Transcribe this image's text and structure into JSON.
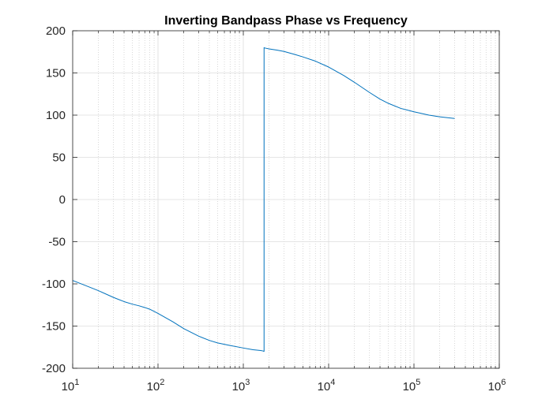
{
  "chart_data": {
    "type": "line",
    "title": "Inverting Bandpass Phase vs Frequency",
    "xlabel": "",
    "ylabel": "",
    "x_scale": "log",
    "xlim": [
      10,
      1000000
    ],
    "ylim": [
      -200,
      200
    ],
    "grid": true,
    "minor_grid_x": true,
    "x_ticks": [
      {
        "base": "10",
        "exp": "1",
        "value": 10
      },
      {
        "base": "10",
        "exp": "2",
        "value": 100
      },
      {
        "base": "10",
        "exp": "3",
        "value": 1000
      },
      {
        "base": "10",
        "exp": "4",
        "value": 10000
      },
      {
        "base": "10",
        "exp": "5",
        "value": 100000
      },
      {
        "base": "10",
        "exp": "6",
        "value": 1000000
      }
    ],
    "y_ticks": [
      "200",
      "150",
      "100",
      "50",
      "0",
      "-50",
      "-100",
      "-150",
      "-200"
    ],
    "series": [
      {
        "color": "#0072BD",
        "x": [
          10,
          15,
          20,
          30,
          40,
          50,
          60,
          70,
          80,
          100,
          150,
          200,
          300,
          400,
          500,
          700,
          1000,
          1300,
          1600,
          1700,
          1750,
          1750.5,
          1800,
          2000,
          2500,
          3000,
          4000,
          5000,
          7000,
          10000,
          15000,
          20000,
          30000,
          40000,
          50000,
          70000,
          100000,
          150000,
          200000,
          300000
        ],
        "y": [
          -96,
          -103,
          -108,
          -116,
          -121,
          -124,
          -126,
          -128,
          -130,
          -135,
          -145,
          -153,
          -162,
          -167,
          -170,
          -173,
          -176,
          -178,
          -179,
          -179.5,
          -180,
          180,
          179.5,
          178.5,
          177,
          175.5,
          172,
          169,
          164,
          157,
          147,
          139,
          127,
          119,
          114,
          108,
          104,
          100,
          98,
          96
        ]
      }
    ]
  }
}
